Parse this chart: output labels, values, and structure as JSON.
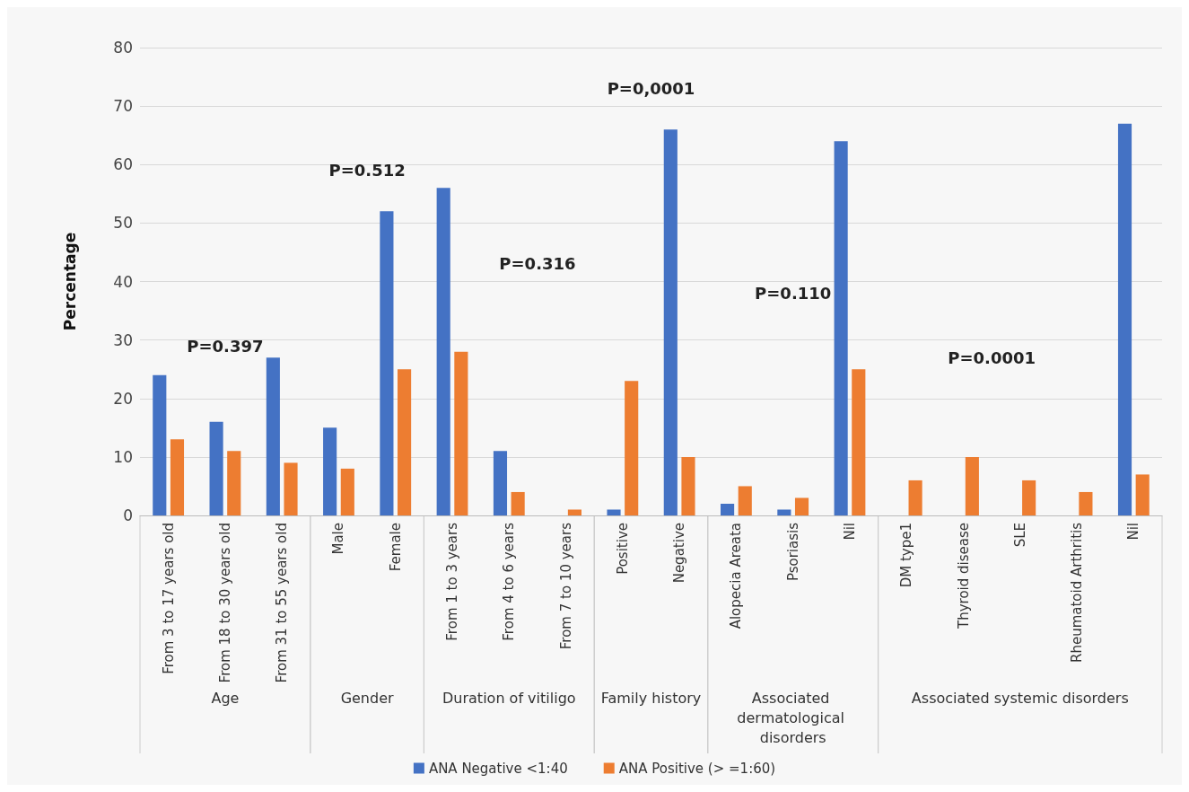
{
  "chart_data": {
    "type": "bar",
    "ylabel": "Percentage",
    "categories": [
      "From 3 to 17 years old",
      "From 18 to 30 years old",
      "From 31 to 55 years old",
      "Male",
      "Female",
      "From 1 to 3 years",
      "From 4 to 6 years",
      "From 7 to 10 years",
      "Positive",
      "Negative",
      "Alopecia Areata",
      "Psoriasis",
      "Nil",
      "DM type1",
      "Thyroid disease",
      "SLE",
      "Rheumatoid Arthritis",
      "Nil"
    ],
    "series": [
      {
        "name": "ANA Negative <1:40",
        "color": "#4472c4",
        "values": [
          24,
          16,
          27,
          15,
          52,
          56,
          11,
          0,
          1,
          66,
          2,
          1,
          64,
          0,
          0,
          0,
          0,
          67
        ]
      },
      {
        "name": "ANA Positive (> =1:60)",
        "color": "#ed7d31",
        "values": [
          13,
          11,
          9,
          8,
          25,
          28,
          4,
          1,
          23,
          10,
          5,
          3,
          25,
          6,
          10,
          6,
          4,
          7
        ]
      }
    ],
    "ylim": [
      0,
      80
    ],
    "yticks": [
      0,
      10,
      20,
      30,
      40,
      50,
      60,
      70,
      80
    ],
    "grid": "y",
    "legend": "bottom",
    "annotations": [
      "P=0.397",
      "P=0.512",
      "P=0.316",
      "P=0,0001",
      "P=0.110",
      "P=0.0001",
      "Age",
      "Gender",
      "Duration of vitiligo",
      "Family history",
      "Associated dermatological disorders",
      "Associated systemic disorders"
    ]
  }
}
